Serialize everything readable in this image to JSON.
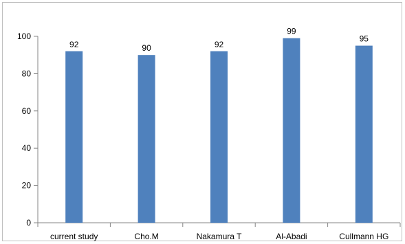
{
  "chart_data": {
    "type": "bar",
    "categories": [
      "current study",
      "Cho.M",
      "Nakamura T",
      "Al-Abadi",
      "Cullmann HG"
    ],
    "values": [
      92,
      90,
      92,
      99,
      95
    ],
    "data_labels": [
      "92",
      "90",
      "92",
      "99",
      "95"
    ],
    "ylim": [
      0,
      100
    ],
    "yticks": [
      0,
      20,
      40,
      60,
      80,
      100
    ],
    "ytick_labels": [
      "0",
      "20",
      "40",
      "60",
      "80",
      "100"
    ],
    "grid": false,
    "legend": "none",
    "bar_color": "#4f81bd",
    "axis_color": "#868686"
  }
}
